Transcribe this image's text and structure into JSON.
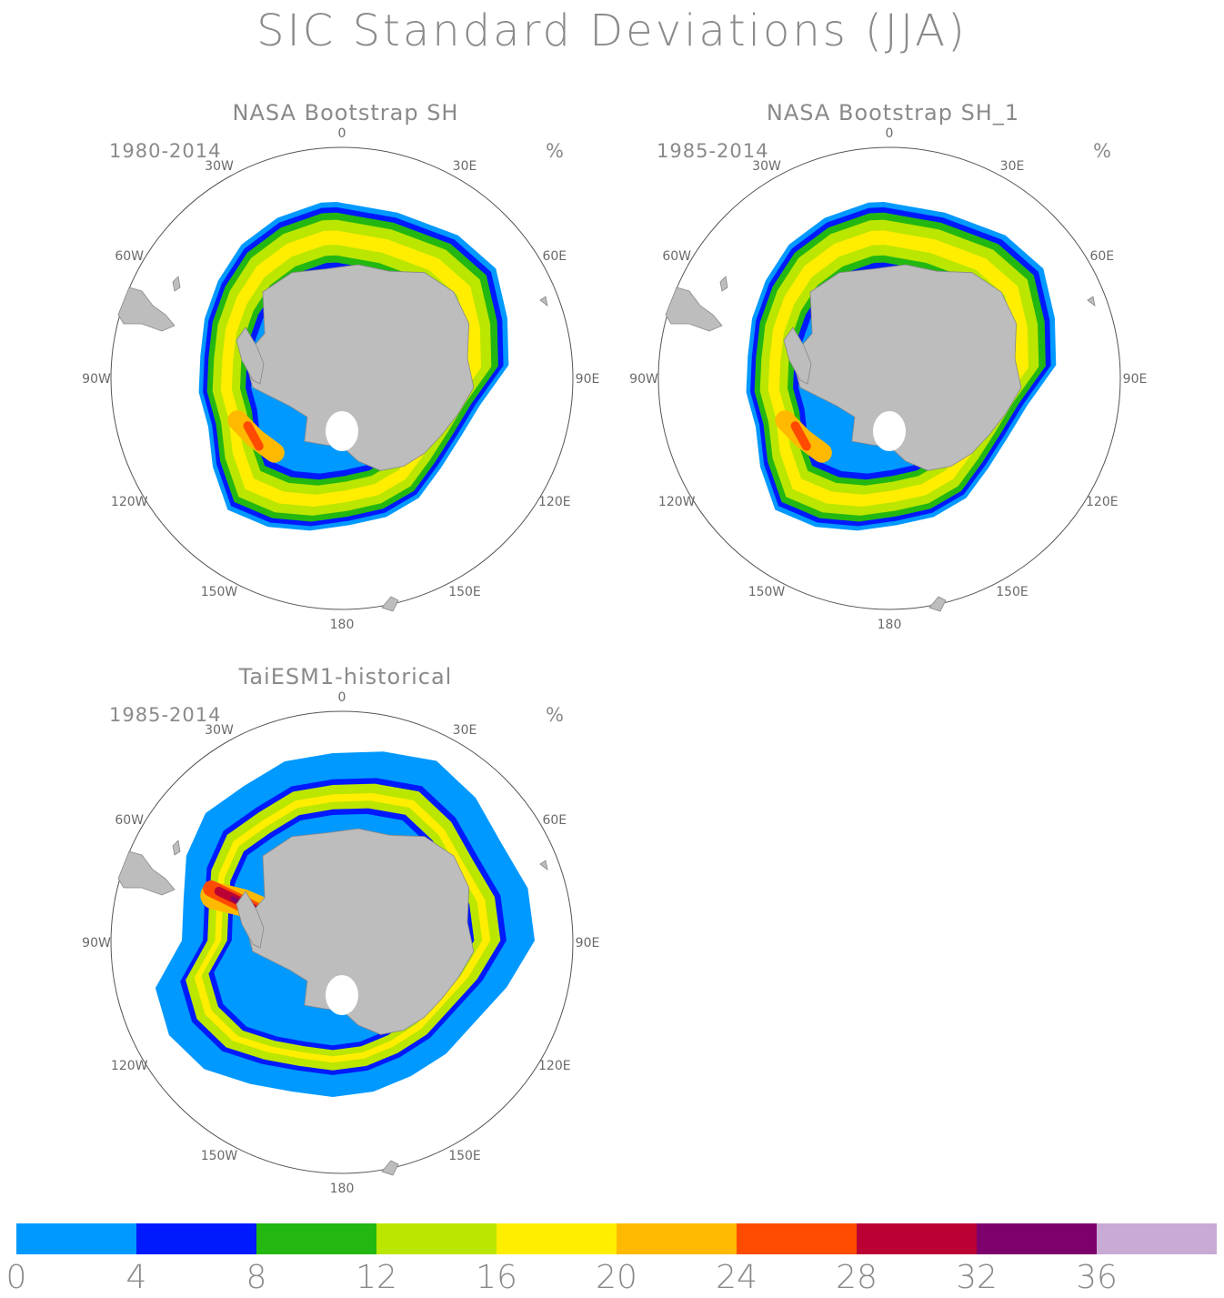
{
  "title": "SIC Standard Deviations (JJA)",
  "panels": [
    {
      "title": "NASA Bootstrap SH",
      "period": "1980-2014",
      "unit": "%",
      "variant": "obs"
    },
    {
      "title": "NASA Bootstrap SH_1",
      "period": "1985-2014",
      "unit": "%",
      "variant": "obs"
    },
    {
      "title": "TaiESM1-historical",
      "period": "1985-2014",
      "unit": "%",
      "variant": "model"
    }
  ],
  "longitude_labels": [
    "0",
    "30E",
    "60E",
    "90E",
    "120E",
    "150E",
    "180",
    "150W",
    "120W",
    "90W",
    "60W",
    "30W"
  ],
  "colorbar": {
    "colors": [
      "#0099ff",
      "#0019ff",
      "#22b811",
      "#bbe600",
      "#ffee00",
      "#ffb900",
      "#ff4b00",
      "#bb0033",
      "#7d006c",
      "#c8aad4"
    ],
    "labels": [
      "0",
      "4",
      "8",
      "12",
      "16",
      "20",
      "24",
      "28",
      "32",
      "36"
    ]
  },
  "map_colors": {
    "land": "#bdbdbd",
    "ocean": "#ffffff",
    "circle": "#555555"
  }
}
